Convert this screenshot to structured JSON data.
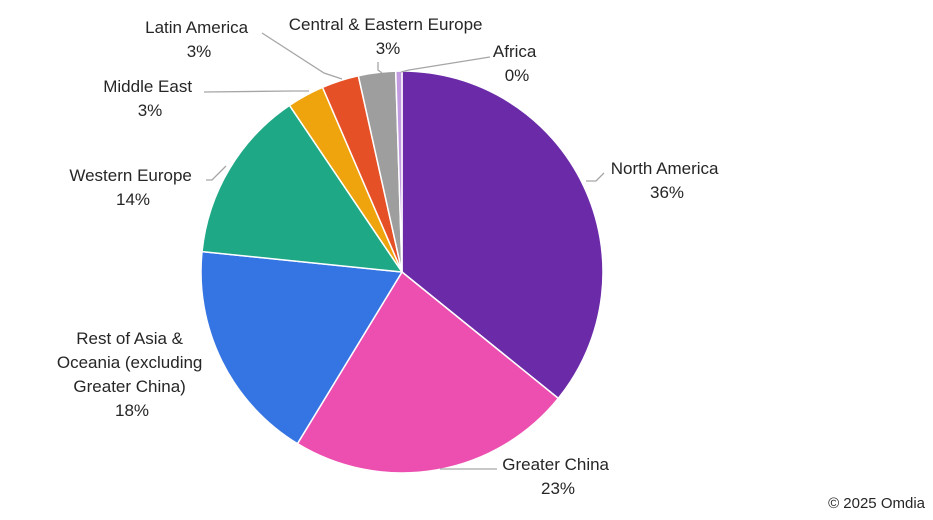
{
  "chart_data": {
    "type": "pie",
    "title": "",
    "start_angle_deg": 0,
    "direction": "clockwise",
    "legend": "none",
    "slices": [
      {
        "name": "North America",
        "value": 36,
        "label": "36%",
        "color": "#6B2BA8"
      },
      {
        "name": "Greater China",
        "value": 23,
        "label": "23%",
        "color": "#EC4FAF"
      },
      {
        "name": "Rest of Asia & Oceania (excluding Greater China)",
        "value": 18,
        "label": "18%",
        "color": "#3574E3"
      },
      {
        "name": "Western Europe",
        "value": 14,
        "label": "14%",
        "color": "#1EA886"
      },
      {
        "name": "Middle East",
        "value": 3,
        "label": "3%",
        "color": "#EFA30C"
      },
      {
        "name": "Latin America",
        "value": 3,
        "label": "3%",
        "color": "#E55027"
      },
      {
        "name": "Central & Eastern Europe",
        "value": 3,
        "label": "3%",
        "color": "#9E9E9E"
      },
      {
        "name": "Africa",
        "value": 0.5,
        "label": "0%",
        "color": "#C39BE0"
      }
    ]
  },
  "credit": "© 2025 Omdia"
}
